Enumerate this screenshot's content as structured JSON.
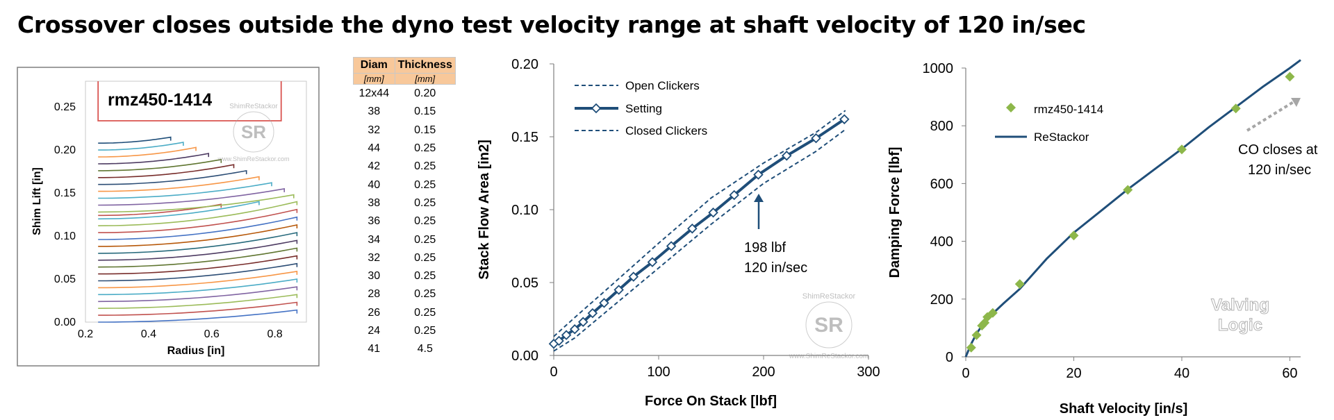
{
  "title": "Crossover closes outside the dyno test velocity range at shaft velocity of 120 in/sec",
  "watermark": {
    "name": "ShimReStackor",
    "url": "www.ShimReStackor.com",
    "initials": "SR"
  },
  "colors": {
    "navy": "#1f4e79",
    "green": "#8db74a",
    "red": "#d9534f",
    "tableHeader": "#f8c89a",
    "grey": "#a6a6a6"
  },
  "shim_table": {
    "headers": [
      "Diam",
      "Thickness"
    ],
    "units": [
      "[mm]",
      "[mm]"
    ],
    "rows": [
      [
        "12x44",
        "0.20"
      ],
      [
        "38",
        "0.15"
      ],
      [
        "32",
        "0.15"
      ],
      [
        "44",
        "0.25"
      ],
      [
        "42",
        "0.25"
      ],
      [
        "40",
        "0.25"
      ],
      [
        "38",
        "0.25"
      ],
      [
        "36",
        "0.25"
      ],
      [
        "34",
        "0.25"
      ],
      [
        "32",
        "0.25"
      ],
      [
        "30",
        "0.25"
      ],
      [
        "28",
        "0.25"
      ],
      [
        "26",
        "0.25"
      ],
      [
        "24",
        "0.25"
      ],
      [
        "41",
        "4.5"
      ]
    ]
  },
  "chart_data": [
    {
      "type": "line",
      "title": "rmz450-1414",
      "xlabel": "Radius [in]",
      "ylabel": "Shim Lift [in]",
      "xlim": [
        0.2,
        0.9
      ],
      "ylim": [
        0.0,
        0.28
      ],
      "xticks": [
        "0.2",
        "0.4",
        "0.6",
        "0.8"
      ],
      "yticks": [
        "0.00",
        "0.05",
        "0.10",
        "0.15",
        "0.20",
        "0.25"
      ],
      "description": "Deflected shim stack profiles, one curve per shim",
      "clamp_radius": 0.24,
      "shims": [
        {
          "r_end": 0.87,
          "y0": 0.0,
          "rise": 0.014,
          "color": "#4472c4"
        },
        {
          "r_end": 0.87,
          "y0": 0.008,
          "rise": 0.015,
          "color": "#c0504d"
        },
        {
          "r_end": 0.87,
          "y0": 0.016,
          "rise": 0.016,
          "color": "#9bbb59"
        },
        {
          "r_end": 0.87,
          "y0": 0.024,
          "rise": 0.017,
          "color": "#8064a2"
        },
        {
          "r_end": 0.87,
          "y0": 0.032,
          "rise": 0.018,
          "color": "#4bacc6"
        },
        {
          "r_end": 0.87,
          "y0": 0.04,
          "rise": 0.019,
          "color": "#f79646"
        },
        {
          "r_end": 0.87,
          "y0": 0.048,
          "rise": 0.02,
          "color": "#2c4d75"
        },
        {
          "r_end": 0.87,
          "y0": 0.056,
          "rise": 0.021,
          "color": "#772c2a"
        },
        {
          "r_end": 0.87,
          "y0": 0.064,
          "rise": 0.022,
          "color": "#5f7530"
        },
        {
          "r_end": 0.87,
          "y0": 0.072,
          "rise": 0.023,
          "color": "#4d3b62"
        },
        {
          "r_end": 0.87,
          "y0": 0.08,
          "rise": 0.024,
          "color": "#276a7c"
        },
        {
          "r_end": 0.87,
          "y0": 0.088,
          "rise": 0.025,
          "color": "#b65708"
        },
        {
          "r_end": 0.87,
          "y0": 0.096,
          "rise": 0.026,
          "color": "#4472c4"
        },
        {
          "r_end": 0.87,
          "y0": 0.104,
          "rise": 0.027,
          "color": "#c0504d"
        },
        {
          "r_end": 0.87,
          "y0": 0.112,
          "rise": 0.028,
          "color": "#9bbb59"
        },
        {
          "r_end": 0.75,
          "y0": 0.12,
          "rise": 0.02,
          "color": "#4bacc6"
        },
        {
          "r_end": 0.63,
          "y0": 0.124,
          "rise": 0.013,
          "color": "#c0504d"
        },
        {
          "r_end": 0.86,
          "y0": 0.128,
          "rise": 0.02,
          "color": "#9bbb59"
        },
        {
          "r_end": 0.83,
          "y0": 0.136,
          "rise": 0.019,
          "color": "#8064a2"
        },
        {
          "r_end": 0.79,
          "y0": 0.144,
          "rise": 0.018,
          "color": "#4bacc6"
        },
        {
          "r_end": 0.75,
          "y0": 0.152,
          "rise": 0.017,
          "color": "#f79646"
        },
        {
          "r_end": 0.71,
          "y0": 0.16,
          "rise": 0.016,
          "color": "#2c4d75"
        },
        {
          "r_end": 0.67,
          "y0": 0.168,
          "rise": 0.015,
          "color": "#772c2a"
        },
        {
          "r_end": 0.63,
          "y0": 0.176,
          "rise": 0.013,
          "color": "#5f7530"
        },
        {
          "r_end": 0.59,
          "y0": 0.184,
          "rise": 0.012,
          "color": "#4d3b62"
        },
        {
          "r_end": 0.55,
          "y0": 0.192,
          "rise": 0.011,
          "color": "#f79646"
        },
        {
          "r_end": 0.51,
          "y0": 0.2,
          "rise": 0.009,
          "color": "#4bacc6"
        },
        {
          "r_end": 0.47,
          "y0": 0.208,
          "rise": 0.007,
          "color": "#1f4e79"
        }
      ],
      "clamp_outline": {
        "r1": 0.24,
        "r2": 0.82,
        "y1": 0.234,
        "y2": 0.28,
        "color": "#d9534f"
      }
    },
    {
      "type": "line",
      "xlabel": "Force On Stack [lbf]",
      "ylabel": "Stack Flow Area [in2]",
      "xlim": [
        0,
        300
      ],
      "ylim": [
        0.0,
        0.2
      ],
      "xticks": [
        "0",
        "100",
        "200",
        "300"
      ],
      "yticks": [
        "0.00",
        "0.05",
        "0.10",
        "0.15",
        "0.20"
      ],
      "series": [
        {
          "name": "Open Clickers",
          "style": "dashed",
          "x": [
            0,
            20,
            50,
            100,
            150,
            200,
            250,
            278
          ],
          "y": [
            0.013,
            0.026,
            0.045,
            0.077,
            0.108,
            0.132,
            0.153,
            0.168
          ]
        },
        {
          "name": "Setting",
          "style": "solid-diamond",
          "x": [
            0,
            5,
            12,
            20,
            28,
            37,
            48,
            62,
            76,
            94,
            112,
            132,
            152,
            172,
            195,
            222,
            250,
            277
          ],
          "y": [
            0.008,
            0.01,
            0.014,
            0.018,
            0.023,
            0.029,
            0.036,
            0.045,
            0.054,
            0.064,
            0.075,
            0.087,
            0.098,
            0.11,
            0.124,
            0.137,
            0.149,
            0.162
          ]
        },
        {
          "name": "Closed Clickers",
          "style": "dashed",
          "x": [
            0,
            20,
            50,
            100,
            150,
            200,
            250,
            278
          ],
          "y": [
            0.003,
            0.012,
            0.03,
            0.06,
            0.09,
            0.118,
            0.14,
            0.155
          ]
        }
      ],
      "annotation": {
        "line1": "198 lbf",
        "line2": "120 in/sec",
        "x": 195,
        "y": 0.112
      }
    },
    {
      "type": "scatter",
      "xlabel": "Shaft Velocity [in/s]",
      "ylabel": "Damping Force [lbf]",
      "xlim": [
        0,
        62
      ],
      "ylim": [
        0,
        1000
      ],
      "xticks": [
        "0",
        "20",
        "40",
        "60"
      ],
      "yticks": [
        "0",
        "200",
        "400",
        "600",
        "800",
        "1000"
      ],
      "series": [
        {
          "name": "rmz450-1414",
          "style": "diamond",
          "x": [
            1,
            2,
            3,
            3.5,
            4,
            5,
            10,
            20,
            30,
            40,
            50,
            60
          ],
          "y": [
            32,
            75,
            108,
            118,
            138,
            152,
            252,
            420,
            578,
            718,
            860,
            970
          ]
        },
        {
          "name": "ReStackor",
          "style": "line",
          "x": [
            0,
            1,
            2,
            3,
            4,
            5,
            7,
            10,
            15,
            20,
            25,
            30,
            35,
            40,
            45,
            50,
            55,
            60,
            62
          ],
          "y": [
            0,
            45,
            80,
            108,
            130,
            150,
            185,
            235,
            340,
            430,
            505,
            580,
            650,
            720,
            795,
            865,
            935,
            1000,
            1028
          ]
        }
      ],
      "annotation": {
        "line1": "CO closes at",
        "line2": "120 in/sec"
      },
      "logo": {
        "line1": "Valving",
        "line2": "Logic"
      }
    }
  ]
}
